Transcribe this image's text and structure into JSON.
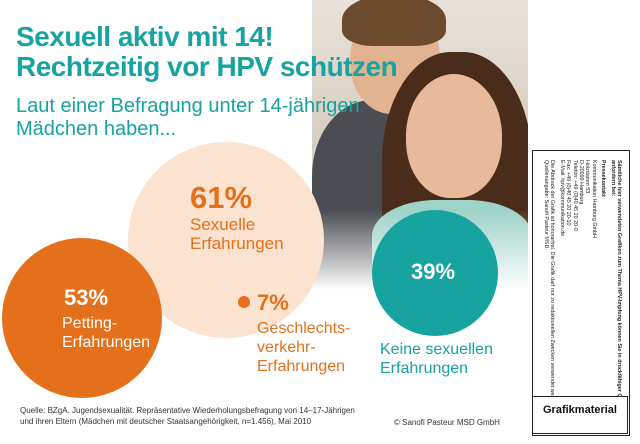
{
  "title_line1": "Sexuell aktiv mit 14!",
  "title_line2": "Rechtzeitig vor HPV schützen",
  "subtitle_line1": "Laut einer Befragung unter 14-jährigen",
  "subtitle_line2": "Mädchen haben...",
  "stats": [
    {
      "percent": "61%",
      "label_line1": "Sexuelle",
      "label_line2": "Erfahrungen",
      "label_line3": ""
    },
    {
      "percent": "53%",
      "label_line1": "Petting-",
      "label_line2": "Erfahrungen",
      "label_line3": ""
    },
    {
      "percent": "7%",
      "label_line1": "Geschlechts-",
      "label_line2": "verkehr-",
      "label_line3": "Erfahrungen"
    },
    {
      "percent": "39%",
      "label_line1": "Keine sexuellen",
      "label_line2": "Erfahrungen",
      "label_line3": ""
    }
  ],
  "source_line1": "Quelle: BZgA. Jugendsexualität. Repräsentative Wiederholungsbefragung von 14–17-Jährigen",
  "source_line2": "und ihren Eltern (Mädchen mit deutscher Staatsangehörigkeit, n=1.456), Mai 2010",
  "copyright": "© Sanofi Pasteur MSD GmbH",
  "panel": {
    "intro": "Sämtliche hier verwendeten Grafiken zum Thema HPV-Impfung können Sie in druckfähiger Qualität anfordern bei:",
    "contact_heading": "Pressekontakt",
    "contact_lines": [
      "Kommunikation Hamburg GmbH",
      "Holzdamm 53",
      "D-20099 Hamburg",
      "Telefon: +49 (0)40 45 20 20-0",
      "Fax: +49 (0)40 45 20 20-10",
      "E-Mail: hpv@kommunikation.de"
    ],
    "footer_note": "Die Abdruck der Grafik ist honorarfrei. Die Grafik darf nur zu redaktionellen Zwecken verwendet werden. Quellenangabe: Sanofi Pasteur MSD.",
    "badge_label": "Grafikmaterial"
  }
}
